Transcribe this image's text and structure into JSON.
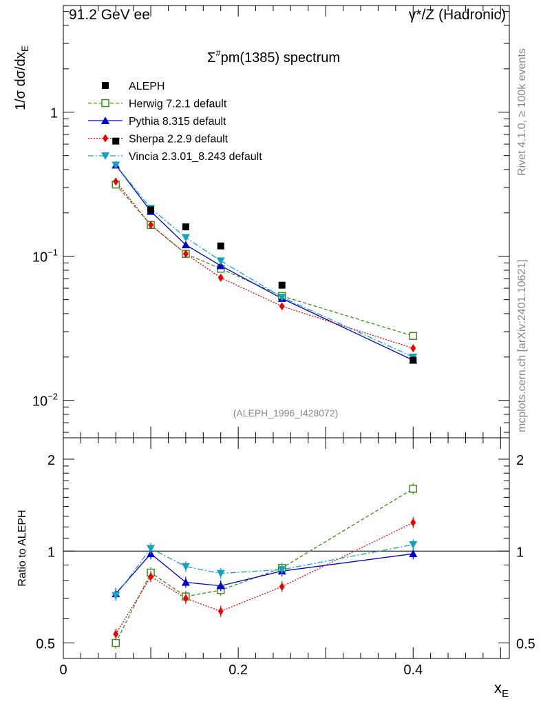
{
  "header": {
    "energy_label": "91.2 GeV ee",
    "process_label": "γ*/Z (Hadronic)"
  },
  "side_labels": {
    "rivet": "Rivet 4.1.0, ≥ 100k events",
    "site": "mcplots.cern.ch [arXiv:2401.10621]"
  },
  "axis_labels": {
    "main_ylabel": "1/σ  dσ/dx",
    "main_ylabel_sub": "E",
    "ratio_ylabel": "Ratio to ALEPH",
    "xlabel": "x",
    "xlabel_sub": "E"
  },
  "title": {
    "sym": "Σ",
    "sup": "#",
    "rest": "pm(1385) spectrum"
  },
  "analysis_tag": "(ALEPH_1996_I428072)",
  "colors": {
    "aleph": "#000000",
    "herwig": "#3a8c1b",
    "pythia": "#0000cc",
    "sherpa": "#ee0000",
    "vincia": "#14a3bf"
  },
  "chart_data": [
    {
      "type": "line",
      "scale": "log",
      "xlim": [
        0,
        0.51
      ],
      "ylim": [
        0.0055,
        5.5
      ],
      "x": [
        0.06,
        0.1,
        0.14,
        0.18,
        0.25,
        0.4
      ],
      "yticks": [
        {
          "value": 0.01,
          "base": "10",
          "exp": "−2"
        },
        {
          "value": 0.1,
          "base": "10",
          "exp": "−1"
        },
        {
          "value": 1,
          "base": "1",
          "exp": ""
        }
      ],
      "series": [
        {
          "name": "ALEPH",
          "key": "aleph",
          "values": [
            0.63,
            0.21,
            0.16,
            0.118,
            0.063,
            0.019
          ]
        },
        {
          "name": "Herwig 7.2.1 default",
          "key": "herwig",
          "values": [
            0.315,
            0.165,
            0.104,
            0.082,
            0.053,
            0.028
          ]
        },
        {
          "name": "Pythia 8.315 default",
          "key": "pythia",
          "values": [
            0.43,
            0.205,
            0.12,
            0.086,
            0.051,
            0.019
          ]
        },
        {
          "name": "Sherpa 2.2.9 default",
          "key": "sherpa",
          "values": [
            0.33,
            0.165,
            0.104,
            0.071,
            0.045,
            0.023
          ]
        },
        {
          "name": "Vincia 2.3.01_8.243 default",
          "key": "vincia",
          "values": [
            0.43,
            0.215,
            0.135,
            0.093,
            0.052,
            0.02
          ]
        }
      ]
    },
    {
      "type": "line",
      "scale": "log",
      "xlim": [
        0,
        0.51
      ],
      "ylim": [
        0.445,
        2.35
      ],
      "x": [
        0.06,
        0.1,
        0.14,
        0.18,
        0.25,
        0.4
      ],
      "xticks": [
        {
          "value": 0,
          "label": "0"
        },
        {
          "value": 0.2,
          "label": "0.2"
        },
        {
          "value": 0.4,
          "label": "0.4"
        }
      ],
      "yticks": [
        {
          "value": 0.5,
          "label": "0.5"
        },
        {
          "value": 1,
          "label": "1"
        },
        {
          "value": 2,
          "label": "2"
        }
      ],
      "reference_line": 1,
      "series": [
        {
          "name": "Herwig 7.2.1 default",
          "key": "herwig",
          "values": [
            0.5,
            0.85,
            0.71,
            0.745,
            0.88,
            1.6
          ]
        },
        {
          "name": "Pythia 8.315 default",
          "key": "pythia",
          "values": [
            0.725,
            0.98,
            0.79,
            0.77,
            0.86,
            0.98
          ]
        },
        {
          "name": "Sherpa 2.2.9 default",
          "key": "sherpa",
          "values": [
            0.535,
            0.825,
            0.7,
            0.635,
            0.765,
            1.24
          ]
        },
        {
          "name": "Vincia 2.3.01_8.243 default",
          "key": "vincia",
          "values": [
            0.715,
            1.02,
            0.89,
            0.845,
            0.87,
            1.05
          ]
        }
      ]
    }
  ]
}
